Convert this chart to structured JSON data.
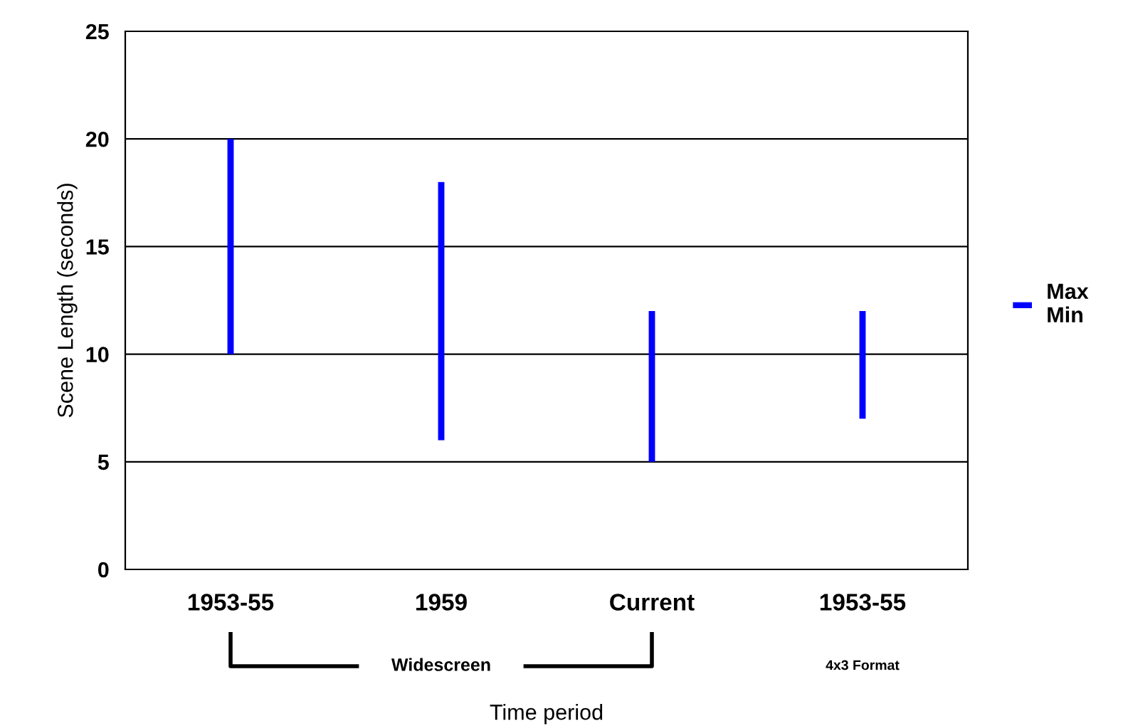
{
  "chart_data": {
    "type": "bar",
    "ylabel": "Scene Length (seconds)",
    "xlabel": "Time period",
    "categories": [
      "1953-55",
      "1959",
      "Current",
      "1953-55"
    ],
    "series": [
      {
        "name": "Max\nMin",
        "color": "#0000ff",
        "values": [
          10,
          12,
          7,
          5
        ],
        "base": [
          10,
          6,
          5,
          7
        ]
      }
    ],
    "ylim": [
      0,
      25
    ],
    "yticks": [
      0,
      5,
      10,
      15,
      20,
      25
    ],
    "grid": "y",
    "legend": "right",
    "annotations": [
      "Widescreen",
      "4x3 Format"
    ]
  }
}
